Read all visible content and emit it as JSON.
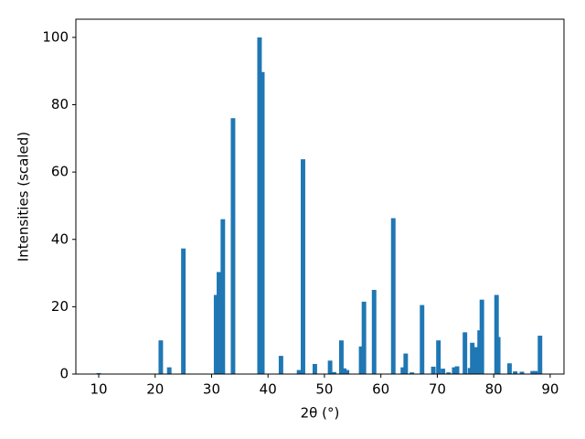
{
  "chart_data": {
    "type": "bar",
    "xlabel": "2θ (°)",
    "ylabel": "Intensities (scaled)",
    "x": [
      10.0,
      21.0,
      22.5,
      25.0,
      30.8,
      31.3,
      32.0,
      33.8,
      38.5,
      39.0,
      42.3,
      45.5,
      46.2,
      48.3,
      51.0,
      51.7,
      53.0,
      53.5,
      54.0,
      56.5,
      57.0,
      58.8,
      62.2,
      63.9,
      64.4,
      65.5,
      67.3,
      69.3,
      70.2,
      71.0,
      72.0,
      73.0,
      73.5,
      74.9,
      75.8,
      76.2,
      76.8,
      77.5,
      77.9,
      80.5,
      80.8,
      82.8,
      83.8,
      85.0,
      86.9,
      87.4,
      88.2
    ],
    "values": [
      0.3,
      10,
      2,
      37.3,
      23.5,
      30.3,
      46,
      76,
      100,
      89.7,
      5.4,
      1.2,
      63.8,
      3,
      4,
      0.6,
      10,
      1.7,
      1.2,
      8.2,
      21.5,
      25,
      46.3,
      2,
      6.1,
      0.5,
      20.5,
      2.2,
      10,
      1.6,
      0.5,
      2,
      2.3,
      12.4,
      1.8,
      9.3,
      8,
      13,
      22.1,
      23.5,
      11,
      3.2,
      0.8,
      0.7,
      0.9,
      0.9,
      11.4
    ],
    "color": "#1f77b4",
    "xlim": [
      5.95,
      92.45
    ],
    "ylim": [
      0,
      105.4
    ],
    "xticks": [
      10,
      20,
      30,
      40,
      50,
      60,
      70,
      80,
      90
    ],
    "yticks": [
      0,
      20,
      40,
      60,
      80,
      100
    ]
  }
}
